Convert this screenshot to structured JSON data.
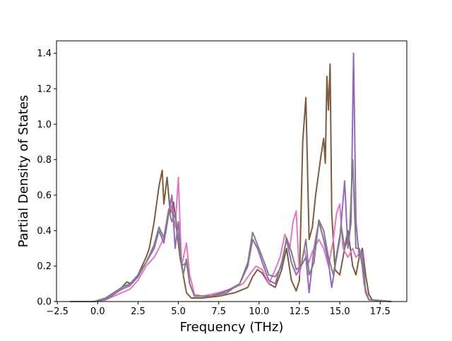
{
  "chart_data": {
    "type": "line",
    "xlabel": "Frequency (THz)",
    "ylabel": "Partial Density of States",
    "xlim": [
      -2.55,
      19.15
    ],
    "ylim": [
      0.0,
      1.47
    ],
    "x_ticks": [
      -2.5,
      0.0,
      2.5,
      5.0,
      7.5,
      10.0,
      12.5,
      15.0,
      17.5
    ],
    "x_tick_labels": [
      "−2.5",
      "0.0",
      "2.5",
      "5.0",
      "7.5",
      "10.0",
      "12.5",
      "15.0",
      "17.5"
    ],
    "y_ticks": [
      0.0,
      0.2,
      0.4,
      0.6,
      0.8,
      1.0,
      1.2,
      1.4
    ],
    "y_tick_labels": [
      "0.0",
      "0.2",
      "0.4",
      "0.6",
      "0.8",
      "1.0",
      "1.2",
      "1.4"
    ],
    "grid": false,
    "legend": "none",
    "series": [
      {
        "color": "#7f5a3c",
        "points": [
          [
            -1.7,
            0
          ],
          [
            -0.2,
            0
          ],
          [
            0.5,
            0.02
          ],
          [
            1.0,
            0.05
          ],
          [
            1.5,
            0.08
          ],
          [
            1.8,
            0.11
          ],
          [
            2.1,
            0.1
          ],
          [
            2.5,
            0.15
          ],
          [
            3.0,
            0.25
          ],
          [
            3.2,
            0.3
          ],
          [
            3.5,
            0.45
          ],
          [
            3.8,
            0.65
          ],
          [
            4.0,
            0.74
          ],
          [
            4.1,
            0.55
          ],
          [
            4.3,
            0.7
          ],
          [
            4.5,
            0.5
          ],
          [
            4.7,
            0.56
          ],
          [
            4.9,
            0.4
          ],
          [
            5.1,
            0.25
          ],
          [
            5.3,
            0.15
          ],
          [
            5.5,
            0.05
          ],
          [
            5.8,
            0.02
          ],
          [
            6.5,
            0.02
          ],
          [
            7.5,
            0.03
          ],
          [
            8.5,
            0.05
          ],
          [
            9.3,
            0.08
          ],
          [
            9.6,
            0.14
          ],
          [
            9.9,
            0.18
          ],
          [
            10.2,
            0.16
          ],
          [
            10.6,
            0.1
          ],
          [
            11.0,
            0.08
          ],
          [
            11.4,
            0.18
          ],
          [
            11.7,
            0.3
          ],
          [
            12.0,
            0.12
          ],
          [
            12.3,
            0.06
          ],
          [
            12.5,
            0.12
          ],
          [
            12.7,
            0.9
          ],
          [
            12.9,
            1.15
          ],
          [
            13.1,
            0.35
          ],
          [
            13.3,
            0.42
          ],
          [
            13.5,
            0.6
          ],
          [
            13.8,
            0.8
          ],
          [
            14.0,
            0.92
          ],
          [
            14.1,
            0.78
          ],
          [
            14.2,
            1.27
          ],
          [
            14.3,
            1.08
          ],
          [
            14.4,
            1.34
          ],
          [
            14.5,
            0.5
          ],
          [
            14.7,
            0.18
          ],
          [
            15.0,
            0.15
          ],
          [
            15.3,
            0.3
          ],
          [
            15.5,
            0.4
          ],
          [
            15.8,
            0.2
          ],
          [
            16.0,
            0.15
          ],
          [
            16.2,
            0.25
          ],
          [
            16.4,
            0.3
          ],
          [
            16.6,
            0.15
          ],
          [
            16.8,
            0.04
          ],
          [
            17.0,
            0.01
          ],
          [
            18.2,
            0
          ]
        ]
      },
      {
        "color": "#e377c2",
        "points": [
          [
            -1.7,
            0
          ],
          [
            -0.2,
            0
          ],
          [
            0.5,
            0.01
          ],
          [
            1.0,
            0.03
          ],
          [
            1.5,
            0.05
          ],
          [
            2.0,
            0.07
          ],
          [
            2.5,
            0.12
          ],
          [
            3.0,
            0.2
          ],
          [
            3.5,
            0.25
          ],
          [
            3.8,
            0.3
          ],
          [
            4.2,
            0.38
          ],
          [
            4.5,
            0.55
          ],
          [
            4.8,
            0.42
          ],
          [
            5.0,
            0.7
          ],
          [
            5.2,
            0.2
          ],
          [
            5.5,
            0.33
          ],
          [
            5.7,
            0.15
          ],
          [
            6.0,
            0.04
          ],
          [
            6.5,
            0.03
          ],
          [
            7.5,
            0.05
          ],
          [
            8.5,
            0.08
          ],
          [
            9.0,
            0.1
          ],
          [
            9.4,
            0.15
          ],
          [
            9.8,
            0.2
          ],
          [
            10.2,
            0.18
          ],
          [
            10.6,
            0.1
          ],
          [
            11.0,
            0.18
          ],
          [
            11.3,
            0.25
          ],
          [
            11.6,
            0.38
          ],
          [
            11.9,
            0.3
          ],
          [
            12.1,
            0.45
          ],
          [
            12.3,
            0.51
          ],
          [
            12.5,
            0.15
          ],
          [
            12.8,
            0.3
          ],
          [
            13.0,
            0.2
          ],
          [
            13.3,
            0.28
          ],
          [
            13.7,
            0.35
          ],
          [
            14.0,
            0.3
          ],
          [
            14.3,
            0.2
          ],
          [
            14.6,
            0.35
          ],
          [
            14.8,
            0.5
          ],
          [
            15.0,
            0.55
          ],
          [
            15.2,
            0.3
          ],
          [
            15.5,
            0.25
          ],
          [
            15.8,
            0.3
          ],
          [
            16.0,
            0.25
          ],
          [
            16.3,
            0.28
          ],
          [
            16.5,
            0.1
          ],
          [
            16.8,
            0.01
          ],
          [
            18.2,
            0
          ]
        ]
      },
      {
        "color": "#9467bd",
        "points": [
          [
            -1.7,
            0
          ],
          [
            -0.2,
            0
          ],
          [
            0.5,
            0.01
          ],
          [
            1.0,
            0.04
          ],
          [
            1.5,
            0.07
          ],
          [
            2.0,
            0.09
          ],
          [
            2.5,
            0.14
          ],
          [
            3.0,
            0.22
          ],
          [
            3.5,
            0.3
          ],
          [
            3.8,
            0.4
          ],
          [
            4.1,
            0.33
          ],
          [
            4.4,
            0.5
          ],
          [
            4.6,
            0.6
          ],
          [
            4.8,
            0.3
          ],
          [
            5.0,
            0.45
          ],
          [
            5.2,
            0.2
          ],
          [
            5.5,
            0.22
          ],
          [
            5.7,
            0.1
          ],
          [
            6.0,
            0.03
          ],
          [
            7.0,
            0.03
          ],
          [
            8.0,
            0.06
          ],
          [
            8.8,
            0.1
          ],
          [
            9.3,
            0.2
          ],
          [
            9.6,
            0.35
          ],
          [
            9.9,
            0.3
          ],
          [
            10.2,
            0.22
          ],
          [
            10.6,
            0.12
          ],
          [
            11.0,
            0.1
          ],
          [
            11.4,
            0.22
          ],
          [
            11.7,
            0.35
          ],
          [
            12.0,
            0.22
          ],
          [
            12.3,
            0.15
          ],
          [
            12.6,
            0.2
          ],
          [
            12.9,
            0.25
          ],
          [
            13.1,
            0.05
          ],
          [
            13.4,
            0.3
          ],
          [
            13.7,
            0.45
          ],
          [
            14.0,
            0.35
          ],
          [
            14.3,
            0.22
          ],
          [
            14.5,
            0.08
          ],
          [
            14.8,
            0.25
          ],
          [
            15.0,
            0.35
          ],
          [
            15.3,
            0.68
          ],
          [
            15.5,
            0.3
          ],
          [
            15.7,
            0.45
          ],
          [
            15.85,
            1.4
          ],
          [
            16.0,
            0.45
          ],
          [
            16.2,
            0.25
          ],
          [
            16.4,
            0.28
          ],
          [
            16.6,
            0.05
          ],
          [
            16.8,
            0.01
          ],
          [
            18.2,
            0
          ]
        ]
      },
      {
        "color": "#7f7f7f",
        "points": [
          [
            -1.7,
            0
          ],
          [
            -0.2,
            0
          ],
          [
            0.5,
            0.02
          ],
          [
            1.0,
            0.05
          ],
          [
            1.5,
            0.08
          ],
          [
            2.0,
            0.1
          ],
          [
            2.5,
            0.15
          ],
          [
            3.0,
            0.22
          ],
          [
            3.5,
            0.32
          ],
          [
            3.8,
            0.42
          ],
          [
            4.1,
            0.36
          ],
          [
            4.4,
            0.52
          ],
          [
            4.6,
            0.45
          ],
          [
            4.8,
            0.5
          ],
          [
            5.0,
            0.35
          ],
          [
            5.3,
            0.15
          ],
          [
            5.5,
            0.24
          ],
          [
            5.7,
            0.1
          ],
          [
            6.0,
            0.03
          ],
          [
            7.0,
            0.03
          ],
          [
            8.0,
            0.05
          ],
          [
            8.8,
            0.1
          ],
          [
            9.3,
            0.22
          ],
          [
            9.6,
            0.39
          ],
          [
            9.9,
            0.32
          ],
          [
            10.2,
            0.25
          ],
          [
            10.6,
            0.15
          ],
          [
            11.0,
            0.14
          ],
          [
            11.4,
            0.2
          ],
          [
            11.7,
            0.36
          ],
          [
            12.0,
            0.28
          ],
          [
            12.3,
            0.18
          ],
          [
            12.6,
            0.2
          ],
          [
            12.9,
            0.35
          ],
          [
            13.1,
            0.15
          ],
          [
            13.4,
            0.22
          ],
          [
            13.7,
            0.46
          ],
          [
            14.0,
            0.4
          ],
          [
            14.3,
            0.25
          ],
          [
            14.6,
            0.15
          ],
          [
            14.9,
            0.32
          ],
          [
            15.1,
            0.42
          ],
          [
            15.3,
            0.3
          ],
          [
            15.6,
            0.38
          ],
          [
            15.8,
            0.8
          ],
          [
            16.0,
            0.3
          ],
          [
            16.2,
            0.3
          ],
          [
            16.4,
            0.2
          ],
          [
            16.6,
            0.05
          ],
          [
            16.8,
            0.01
          ],
          [
            18.2,
            0
          ]
        ]
      }
    ]
  }
}
